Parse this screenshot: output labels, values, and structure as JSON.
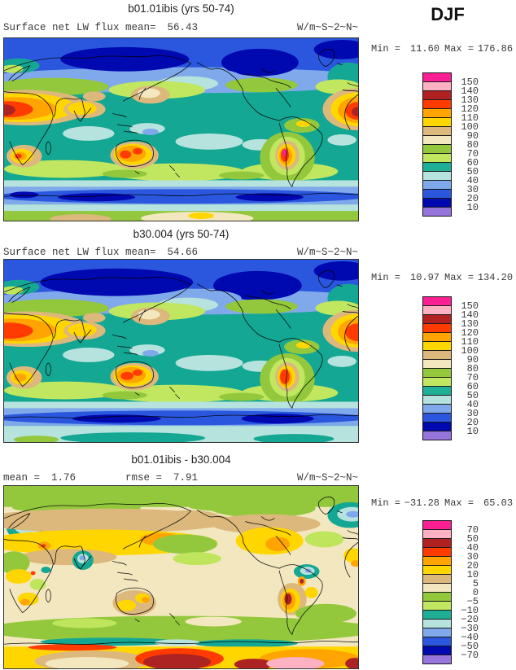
{
  "season_label": "DJF",
  "panels": [
    {
      "title": "b01.01ibis (yrs 50-74)",
      "field_label": "Surface net LW flux",
      "mean_label": "mean=",
      "mean_value": "56.43",
      "units": "W/m~S~2~N~",
      "min_label": "Min =",
      "min_value": "11.60",
      "max_label": "Max =",
      "max_value": "176.86",
      "colorbar": {
        "box_colors": [
          "#FA1F92",
          "#FFB1C4",
          "#B22121",
          "#FF3B00",
          "#FFA400",
          "#FFD600",
          "#DDB87C",
          "#F3E7BF",
          "#93C83D",
          "#C0E75F",
          "#1FAE96",
          "#B7E3DE",
          "#7FA9EA",
          "#2A57DD",
          "#0008B0",
          "#9574DC"
        ],
        "tick_labels": [
          "150",
          "140",
          "130",
          "120",
          "110",
          "100",
          "90",
          "80",
          "70",
          "60",
          "50",
          "40",
          "30",
          "20",
          "10"
        ]
      }
    },
    {
      "title": "b30.004 (yrs 50-74)",
      "field_label": "Surface net LW flux",
      "mean_label": "mean=",
      "mean_value": "54.66",
      "units": "W/m~S~2~N~",
      "min_label": "Min =",
      "min_value": "10.97",
      "max_label": "Max =",
      "max_value": "134.20",
      "colorbar": {
        "box_colors": [
          "#FA1F92",
          "#FFB1C4",
          "#B22121",
          "#FF3B00",
          "#FFA400",
          "#FFD600",
          "#DDB87C",
          "#F3E7BF",
          "#93C83D",
          "#C0E75F",
          "#1FAE96",
          "#B7E3DE",
          "#7FA9EA",
          "#2A57DD",
          "#0008B0",
          "#9574DC"
        ],
        "tick_labels": [
          "150",
          "140",
          "130",
          "120",
          "110",
          "100",
          "90",
          "80",
          "70",
          "60",
          "50",
          "40",
          "30",
          "20",
          "10"
        ]
      }
    },
    {
      "title": "b01.01ibis - b30.004",
      "mean_label": "mean =",
      "mean_value": "1.76",
      "rmse_label": "rmse =",
      "rmse_value": "7.91",
      "units": "W/m~S~2~N~",
      "min_label": "Min =",
      "min_value": "−31.28",
      "max_value": "65.03",
      "max_label": "Max =",
      "colorbar": {
        "box_colors": [
          "#FA1F92",
          "#FFB1C4",
          "#B22121",
          "#FF3B00",
          "#FFA400",
          "#FFD600",
          "#DDB87C",
          "#F3E7BF",
          "#93C83D",
          "#C0E75F",
          "#1FAE96",
          "#B7E3DE",
          "#7FA9EA",
          "#2A57DD",
          "#0008B0",
          "#9574DC"
        ],
        "tick_labels": [
          "70",
          "50",
          "40",
          "30",
          "20",
          "10",
          "5",
          "0",
          "−5",
          "−10",
          "−20",
          "−30",
          "−40",
          "−50",
          "−70"
        ]
      }
    }
  ],
  "chart_data": [
    {
      "type": "heatmap",
      "title": "b01.01ibis (yrs 50-74)",
      "variable": "Surface net LW flux",
      "season": "DJF",
      "units": "W/m~S~2~N~",
      "mean": 56.43,
      "min": 11.6,
      "max": 176.86,
      "contour_levels": [
        150,
        140,
        130,
        120,
        110,
        100,
        90,
        80,
        70,
        60,
        50,
        40,
        30,
        20,
        10
      ],
      "palette_top_to_bottom": [
        "#FA1F92",
        "#FFB1C4",
        "#B22121",
        "#FF3B00",
        "#FFA400",
        "#FFD600",
        "#DDB87C",
        "#F3E7BF",
        "#93C83D",
        "#C0E75F",
        "#1FAE96",
        "#B7E3DE",
        "#7FA9EA",
        "#2A57DD",
        "#0008B0",
        "#9574DC"
      ],
      "projection": "global cylindrical equidistant, 0-360E",
      "legend_position": "right"
    },
    {
      "type": "heatmap",
      "title": "b30.004 (yrs 50-74)",
      "variable": "Surface net LW flux",
      "season": "DJF",
      "units": "W/m~S~2~N~",
      "mean": 54.66,
      "min": 10.97,
      "max": 134.2,
      "contour_levels": [
        150,
        140,
        130,
        120,
        110,
        100,
        90,
        80,
        70,
        60,
        50,
        40,
        30,
        20,
        10
      ],
      "palette_top_to_bottom": [
        "#FA1F92",
        "#FFB1C4",
        "#B22121",
        "#FF3B00",
        "#FFA400",
        "#FFD600",
        "#DDB87C",
        "#F3E7BF",
        "#93C83D",
        "#C0E75F",
        "#1FAE96",
        "#B7E3DE",
        "#7FA9EA",
        "#2A57DD",
        "#0008B0",
        "#9574DC"
      ],
      "projection": "global cylindrical equidistant, 0-360E",
      "legend_position": "right"
    },
    {
      "type": "heatmap",
      "title": "b01.01ibis - b30.004",
      "season": "DJF",
      "units": "W/m~S~2~N~",
      "mean": 1.76,
      "rmse": 7.91,
      "min": -31.28,
      "max": 65.03,
      "contour_levels": [
        70,
        50,
        40,
        30,
        20,
        10,
        5,
        0,
        -5,
        -10,
        -20,
        -30,
        -40,
        -50,
        -70
      ],
      "palette_top_to_bottom": [
        "#FA1F92",
        "#FFB1C4",
        "#B22121",
        "#FF3B00",
        "#FFA400",
        "#FFD600",
        "#DDB87C",
        "#F3E7BF",
        "#93C83D",
        "#C0E75F",
        "#1FAE96",
        "#B7E3DE",
        "#7FA9EA",
        "#2A57DD",
        "#0008B0",
        "#9574DC"
      ],
      "projection": "global cylindrical equidistant, 0-360E",
      "legend_position": "right"
    }
  ]
}
